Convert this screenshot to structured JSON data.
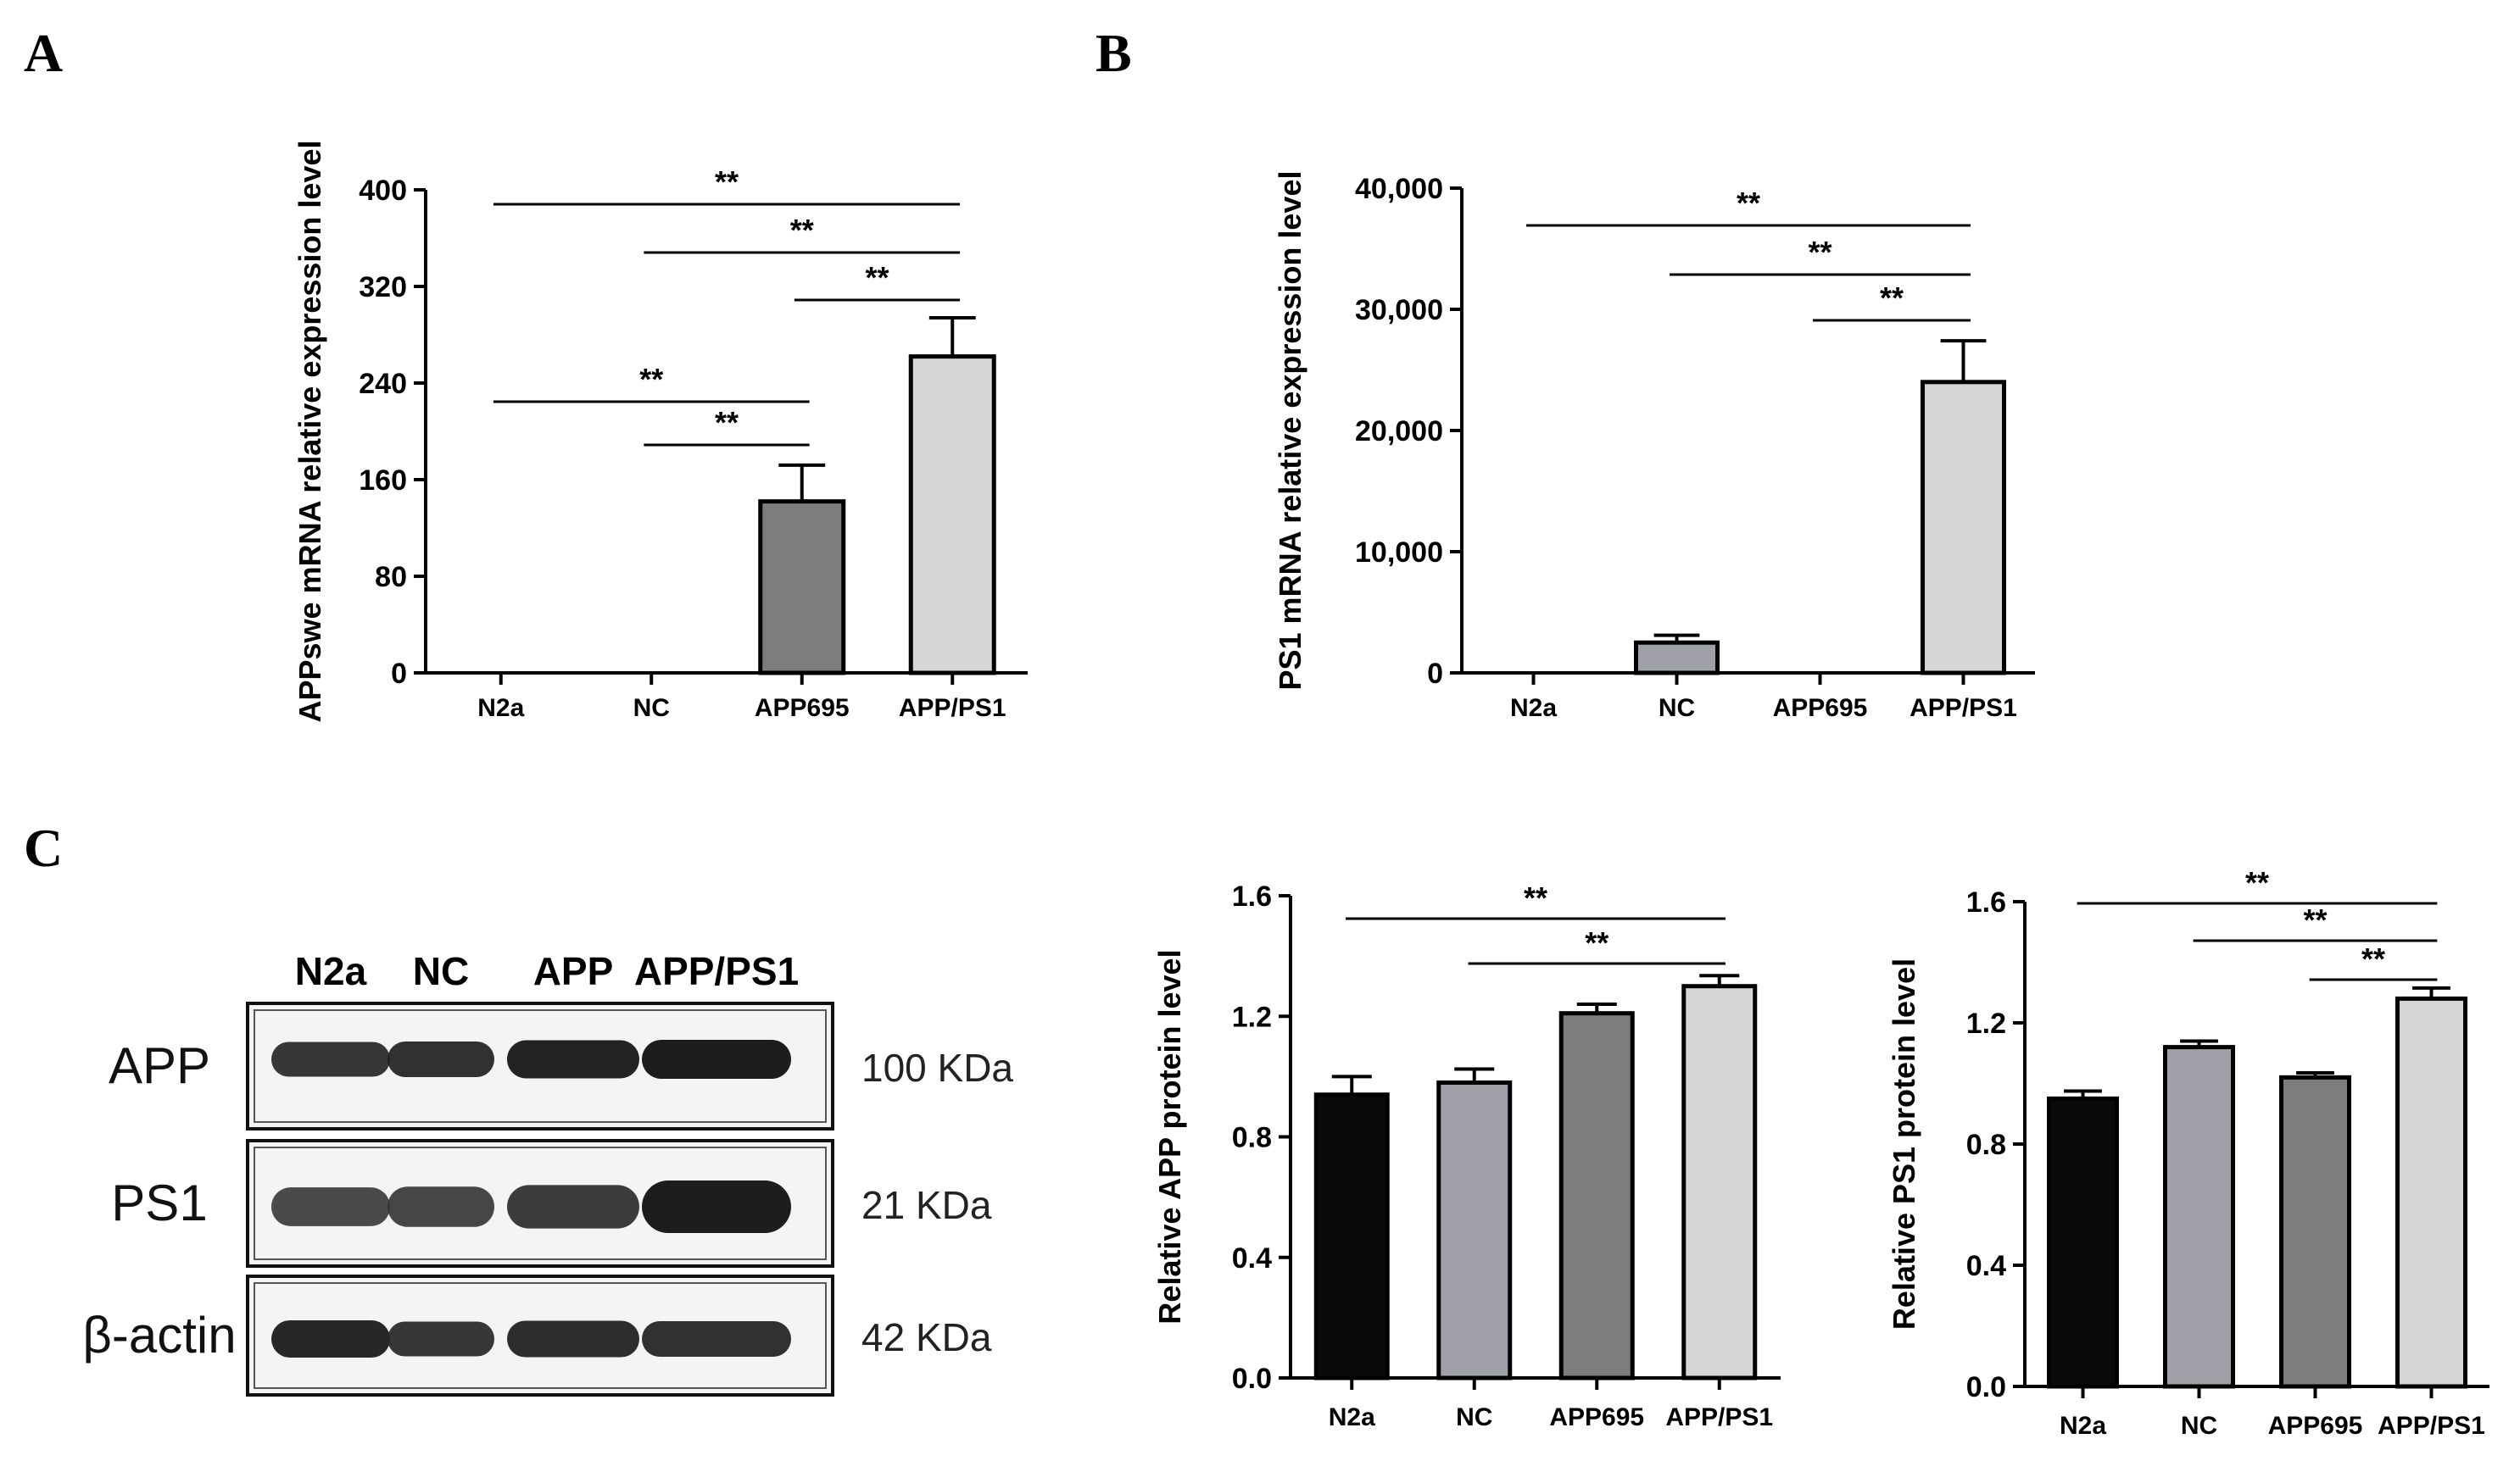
{
  "panels": {
    "A": {
      "letter": "A"
    },
    "B": {
      "letter": "B"
    },
    "C": {
      "letter": "C"
    }
  },
  "western_blot": {
    "lanes": [
      "N2a",
      "NC",
      "APP",
      "APP/PS1"
    ],
    "rows": [
      {
        "protein": "APP",
        "size": "100 KDa",
        "intensities": [
          0.75,
          0.8,
          0.95,
          1.0
        ]
      },
      {
        "protein": "PS1",
        "size": "21 KDa",
        "intensities": [
          0.55,
          0.6,
          0.7,
          1.0
        ]
      },
      {
        "protein": "β-actin",
        "size": "42 KDa",
        "intensities": [
          0.9,
          0.75,
          0.85,
          0.8
        ]
      }
    ]
  },
  "colors": {
    "N2a": "#0a0a0a",
    "NC": "#a0a0a8",
    "APP695": "#7d7d7d",
    "APP/PS1": "#d6d6d6"
  },
  "chart_data": [
    {
      "panel": "A",
      "type": "bar",
      "categories": [
        "N2a",
        "NC",
        "APP695",
        "APP/PS1"
      ],
      "values": [
        0,
        0,
        142,
        262
      ],
      "errors": [
        0,
        0,
        30,
        32
      ],
      "ylabel": "APPswe mRNA relative expression level",
      "ylim": [
        0,
        400
      ],
      "yticks": [
        "0",
        "80",
        "160",
        "240",
        "320",
        "400"
      ],
      "significance": [
        {
          "from": 0,
          "to": 3,
          "label": "**"
        },
        {
          "from": 1,
          "to": 3,
          "label": "**"
        },
        {
          "from": 2,
          "to": 3,
          "label": "**"
        },
        {
          "from": 0,
          "to": 2,
          "label": "**"
        },
        {
          "from": 1,
          "to": 2,
          "label": "**"
        }
      ]
    },
    {
      "panel": "B",
      "type": "bar",
      "categories": [
        "N2a",
        "NC",
        "APP695",
        "APP/PS1"
      ],
      "values": [
        0,
        2500,
        0,
        24000
      ],
      "errors": [
        0,
        600,
        0,
        3400
      ],
      "ylabel": "PS1 mRNA relative expression level",
      "ylim": [
        0,
        40000
      ],
      "yticks": [
        "0",
        "10,000",
        "20,000",
        "30,000",
        "40,000"
      ],
      "significance": [
        {
          "from": 0,
          "to": 3,
          "label": "**"
        },
        {
          "from": 1,
          "to": 3,
          "label": "**"
        },
        {
          "from": 2,
          "to": 3,
          "label": "**"
        }
      ]
    },
    {
      "panel": "C-APP",
      "type": "bar",
      "categories": [
        "N2a",
        "NC",
        "APP695",
        "APP/PS1"
      ],
      "values": [
        0.94,
        0.98,
        1.21,
        1.3
      ],
      "errors": [
        0.06,
        0.045,
        0.03,
        0.035
      ],
      "ylabel": "Relative APP protein level",
      "ylim": [
        0,
        1.6
      ],
      "yticks": [
        "0.0",
        "0.4",
        "0.8",
        "1.2",
        "1.6"
      ],
      "significance": [
        {
          "from": 0,
          "to": 3,
          "label": "**"
        },
        {
          "from": 1,
          "to": 3,
          "label": "**"
        }
      ]
    },
    {
      "panel": "C-PS1",
      "type": "bar",
      "categories": [
        "N2a",
        "NC",
        "APP695",
        "APP/PS1"
      ],
      "values": [
        0.95,
        1.12,
        1.02,
        1.28
      ],
      "errors": [
        0.025,
        0.02,
        0.015,
        0.035
      ],
      "ylabel": "Relative PS1 protein level",
      "ylim": [
        0,
        1.6
      ],
      "yticks": [
        "0.0",
        "0.4",
        "0.8",
        "1.2",
        "1.6"
      ],
      "significance": [
        {
          "from": 0,
          "to": 3,
          "label": "**"
        },
        {
          "from": 1,
          "to": 3,
          "label": "**"
        },
        {
          "from": 2,
          "to": 3,
          "label": "**"
        }
      ]
    }
  ]
}
